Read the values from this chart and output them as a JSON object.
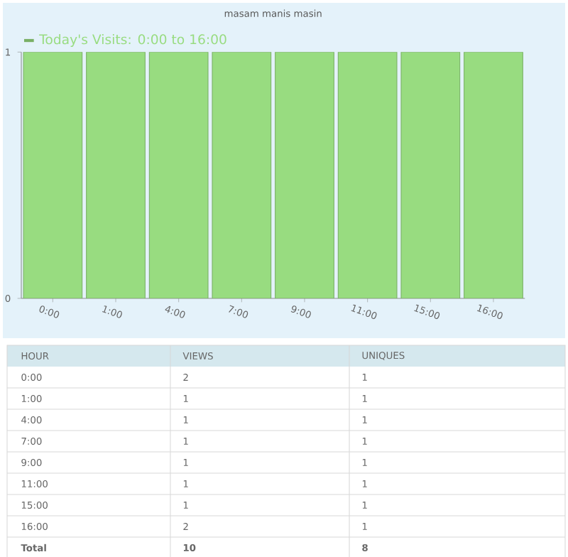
{
  "chart_data": [
    {
      "type": "bar",
      "title": "masam manis masin",
      "categories": [
        "0:00",
        "1:00",
        "4:00",
        "7:00",
        "9:00",
        "11:00",
        "15:00",
        "16:00"
      ],
      "series": [
        {
          "name": "Today's Visits: 0:00 to 16:00",
          "color": "#98dc80",
          "values": [
            1,
            1,
            1,
            1,
            1,
            1,
            1,
            1
          ]
        }
      ],
      "ylim": [
        0,
        1
      ],
      "yticks": [
        0,
        1
      ],
      "legend": "top left"
    },
    {
      "type": "other",
      "xlabel": "HOUR",
      "categories": [
        "0:00",
        "1:00",
        "4:00",
        "7:00",
        "9:00",
        "11:00",
        "15:00",
        "16:00",
        "Total"
      ],
      "series": [
        {
          "name": "VIEWS",
          "values": [
            2,
            1,
            1,
            1,
            1,
            1,
            1,
            2,
            10
          ]
        },
        {
          "name": "UNIQUES",
          "values": [
            1,
            1,
            1,
            1,
            1,
            1,
            1,
            1,
            8
          ]
        }
      ],
      "data_labels": true
    }
  ]
}
